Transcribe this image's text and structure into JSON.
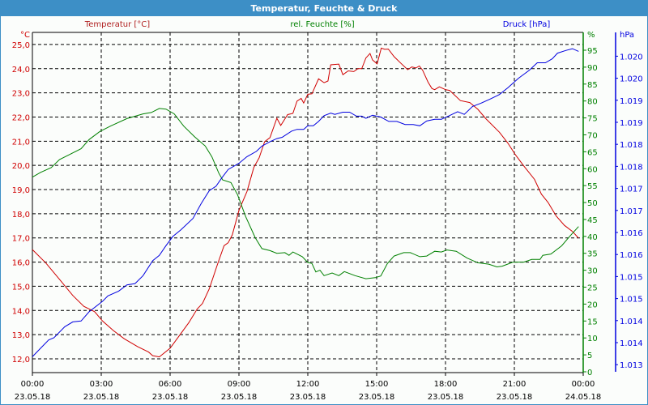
{
  "window": {
    "title": "Temperatur, Feuchte & Druck"
  },
  "colors": {
    "temperature": "#d00000",
    "humidity": "#008000",
    "pressure": "#0000e0",
    "titlebar": "#3d8fc6"
  },
  "chart_data": {
    "type": "line",
    "title": "Temperatur, Feuchte & Druck",
    "grid": true,
    "x_unit": "hours since 23.05.18 00:00",
    "xlim": [
      0,
      24
    ],
    "x_ticks": [
      {
        "time": "00:00",
        "date": "23.05.18"
      },
      {
        "time": "03:00",
        "date": "23.05.18"
      },
      {
        "time": "06:00",
        "date": "23.05.18"
      },
      {
        "time": "09:00",
        "date": "23.05.18"
      },
      {
        "time": "12:00",
        "date": "23.05.18"
      },
      {
        "time": "15:00",
        "date": "23.05.18"
      },
      {
        "time": "18:00",
        "date": "23.05.18"
      },
      {
        "time": "21:00",
        "date": "23.05.18"
      },
      {
        "time": "00:00",
        "date": "24.05.18"
      }
    ],
    "axes": {
      "temperature": {
        "label": "Temperatur [°C]",
        "unit": "°C",
        "ylim": [
          11.43,
          25.5
        ],
        "ticks": [
          "25,0",
          "24,0",
          "23,0",
          "22,0",
          "21,0",
          "20,0",
          "19,0",
          "18,0",
          "17,0",
          "16,0",
          "15,0",
          "14,0",
          "13,0",
          "12,0"
        ]
      },
      "humidity": {
        "label": "rel. Feuchte [%]",
        "unit": "%",
        "ylim": [
          0,
          96.4
        ],
        "ticks": [
          "95",
          "90",
          "85",
          "80",
          "75",
          "70",
          "65",
          "60",
          "55",
          "50",
          "45",
          "40",
          "35",
          "30",
          "25",
          "20",
          "15",
          "10",
          "5",
          "0"
        ]
      },
      "pressure": {
        "label": "Druck [hPa]",
        "unit": "hPa",
        "ylim": [
          1012.82,
          1020.54
        ],
        "ticks": [
          "1.020",
          "1.020",
          "1.019",
          "1.019",
          "1.018",
          "1.018",
          "1.017",
          "1.017",
          "1.016",
          "1.016",
          "1.015",
          "1.015",
          "1.014",
          "1.014",
          "1.013"
        ]
      }
    },
    "series": [
      {
        "name": "Temperatur",
        "axis": "temperature",
        "points": [
          [
            0,
            16.52
          ],
          [
            0.59,
            15.96
          ],
          [
            1.18,
            15.29
          ],
          [
            1.76,
            14.62
          ],
          [
            2.24,
            14.17
          ],
          [
            2.71,
            13.95
          ],
          [
            3.06,
            13.56
          ],
          [
            3.53,
            13.17
          ],
          [
            4.0,
            12.83
          ],
          [
            4.59,
            12.5
          ],
          [
            5.06,
            12.28
          ],
          [
            5.24,
            12.13
          ],
          [
            5.53,
            12.08
          ],
          [
            6.0,
            12.44
          ],
          [
            6.35,
            12.89
          ],
          [
            6.82,
            13.5
          ],
          [
            7.18,
            14.06
          ],
          [
            7.41,
            14.29
          ],
          [
            7.71,
            14.9
          ],
          [
            8.06,
            15.9
          ],
          [
            8.35,
            16.68
          ],
          [
            8.53,
            16.8
          ],
          [
            8.71,
            17.13
          ],
          [
            9.0,
            18.14
          ],
          [
            9.35,
            18.92
          ],
          [
            9.65,
            19.92
          ],
          [
            9.88,
            20.31
          ],
          [
            10.12,
            20.98
          ],
          [
            10.35,
            21.15
          ],
          [
            10.65,
            21.95
          ],
          [
            10.82,
            21.65
          ],
          [
            11.12,
            22.1
          ],
          [
            11.35,
            22.15
          ],
          [
            11.53,
            22.66
          ],
          [
            11.71,
            22.77
          ],
          [
            11.82,
            22.58
          ],
          [
            12.0,
            22.94
          ],
          [
            12.18,
            22.96
          ],
          [
            12.47,
            23.58
          ],
          [
            12.71,
            23.42
          ],
          [
            12.88,
            23.49
          ],
          [
            13.0,
            24.16
          ],
          [
            13.35,
            24.19
          ],
          [
            13.53,
            23.75
          ],
          [
            13.76,
            23.91
          ],
          [
            14.0,
            23.88
          ],
          [
            14.18,
            24.0
          ],
          [
            14.35,
            24.0
          ],
          [
            14.53,
            24.44
          ],
          [
            14.71,
            24.63
          ],
          [
            14.82,
            24.36
          ],
          [
            15.02,
            24.2
          ],
          [
            15.2,
            24.85
          ],
          [
            15.35,
            24.8
          ],
          [
            15.51,
            24.81
          ],
          [
            15.76,
            24.5
          ],
          [
            16.06,
            24.22
          ],
          [
            16.35,
            23.96
          ],
          [
            16.53,
            24.07
          ],
          [
            16.71,
            24.03
          ],
          [
            16.86,
            24.11
          ],
          [
            17.0,
            23.94
          ],
          [
            17.24,
            23.44
          ],
          [
            17.41,
            23.18
          ],
          [
            17.53,
            23.13
          ],
          [
            17.73,
            23.25
          ],
          [
            18.0,
            23.13
          ],
          [
            18.18,
            23.1
          ],
          [
            18.65,
            22.68
          ],
          [
            19.06,
            22.6
          ],
          [
            19.41,
            22.32
          ],
          [
            19.76,
            21.93
          ],
          [
            20.35,
            21.37
          ],
          [
            20.71,
            20.93
          ],
          [
            21.06,
            20.42
          ],
          [
            21.41,
            19.98
          ],
          [
            21.88,
            19.42
          ],
          [
            22.18,
            18.81
          ],
          [
            22.47,
            18.47
          ],
          [
            22.82,
            17.91
          ],
          [
            23.18,
            17.52
          ],
          [
            23.53,
            17.27
          ],
          [
            23.8,
            16.99
          ]
        ]
      },
      {
        "name": "rel. Feuchte",
        "axis": "humidity",
        "points": [
          [
            0,
            57.5
          ],
          [
            0.35,
            58.9
          ],
          [
            0.82,
            60.3
          ],
          [
            1.18,
            62.7
          ],
          [
            1.65,
            64.3
          ],
          [
            2.12,
            65.9
          ],
          [
            2.47,
            68.6
          ],
          [
            2.94,
            71.0
          ],
          [
            3.41,
            72.6
          ],
          [
            4.12,
            74.8
          ],
          [
            4.82,
            76.2
          ],
          [
            5.18,
            76.6
          ],
          [
            5.53,
            77.8
          ],
          [
            5.82,
            77.6
          ],
          [
            6.18,
            76.2
          ],
          [
            6.59,
            72.6
          ],
          [
            7.06,
            69.5
          ],
          [
            7.53,
            66.7
          ],
          [
            7.82,
            63.5
          ],
          [
            8.12,
            58.7
          ],
          [
            8.29,
            56.7
          ],
          [
            8.65,
            55.9
          ],
          [
            8.94,
            52.3
          ],
          [
            9.29,
            45.9
          ],
          [
            9.71,
            39.6
          ],
          [
            10.0,
            36.4
          ],
          [
            10.35,
            35.8
          ],
          [
            10.65,
            35.0
          ],
          [
            11.0,
            35.2
          ],
          [
            11.18,
            34.4
          ],
          [
            11.35,
            35.4
          ],
          [
            11.76,
            34.0
          ],
          [
            12.0,
            32.3
          ],
          [
            12.18,
            32.0
          ],
          [
            12.35,
            29.5
          ],
          [
            12.53,
            30.0
          ],
          [
            12.71,
            28.4
          ],
          [
            13.06,
            29.2
          ],
          [
            13.35,
            28.4
          ],
          [
            13.59,
            29.6
          ],
          [
            14.06,
            28.4
          ],
          [
            14.53,
            27.5
          ],
          [
            14.94,
            27.8
          ],
          [
            15.18,
            28.3
          ],
          [
            15.47,
            32.0
          ],
          [
            15.76,
            34.2
          ],
          [
            16.18,
            35.2
          ],
          [
            16.47,
            35.2
          ],
          [
            16.88,
            34.0
          ],
          [
            17.18,
            34.2
          ],
          [
            17.53,
            35.6
          ],
          [
            17.82,
            35.4
          ],
          [
            18.06,
            36.0
          ],
          [
            18.47,
            35.6
          ],
          [
            18.94,
            33.6
          ],
          [
            19.41,
            32.2
          ],
          [
            19.88,
            31.8
          ],
          [
            20.24,
            31.0
          ],
          [
            20.47,
            31.2
          ],
          [
            20.94,
            32.4
          ],
          [
            21.41,
            32.4
          ],
          [
            21.76,
            33.2
          ],
          [
            22.12,
            33.2
          ],
          [
            22.24,
            34.4
          ],
          [
            22.59,
            34.8
          ],
          [
            23.06,
            37.2
          ],
          [
            23.41,
            40.0
          ],
          [
            23.8,
            42.9
          ]
        ]
      },
      {
        "name": "Druck",
        "axis": "pressure",
        "points": [
          [
            0,
            1013.18
          ],
          [
            0.35,
            1013.37
          ],
          [
            0.71,
            1013.56
          ],
          [
            0.94,
            1013.61
          ],
          [
            1.41,
            1013.86
          ],
          [
            1.76,
            1013.97
          ],
          [
            2.12,
            1013.99
          ],
          [
            2.47,
            1014.2
          ],
          [
            3.06,
            1014.44
          ],
          [
            3.29,
            1014.56
          ],
          [
            3.76,
            1014.67
          ],
          [
            4.12,
            1014.81
          ],
          [
            4.47,
            1014.84
          ],
          [
            4.82,
            1015.02
          ],
          [
            5.24,
            1015.36
          ],
          [
            5.53,
            1015.48
          ],
          [
            5.82,
            1015.7
          ],
          [
            6.12,
            1015.91
          ],
          [
            6.47,
            1016.06
          ],
          [
            7.0,
            1016.32
          ],
          [
            7.35,
            1016.65
          ],
          [
            7.71,
            1016.95
          ],
          [
            8.0,
            1017.05
          ],
          [
            8.24,
            1017.23
          ],
          [
            8.53,
            1017.43
          ],
          [
            9.0,
            1017.57
          ],
          [
            9.35,
            1017.72
          ],
          [
            9.76,
            1017.84
          ],
          [
            10.0,
            1017.96
          ],
          [
            10.35,
            1018.06
          ],
          [
            10.65,
            1018.13
          ],
          [
            10.88,
            1018.16
          ],
          [
            11.29,
            1018.3
          ],
          [
            11.53,
            1018.34
          ],
          [
            11.82,
            1018.34
          ],
          [
            12.0,
            1018.42
          ],
          [
            12.24,
            1018.42
          ],
          [
            12.47,
            1018.52
          ],
          [
            12.71,
            1018.65
          ],
          [
            13.0,
            1018.71
          ],
          [
            13.18,
            1018.68
          ],
          [
            13.53,
            1018.73
          ],
          [
            13.82,
            1018.73
          ],
          [
            14.12,
            1018.64
          ],
          [
            14.35,
            1018.64
          ],
          [
            14.53,
            1018.59
          ],
          [
            14.82,
            1018.66
          ],
          [
            15.18,
            1018.62
          ],
          [
            15.53,
            1018.52
          ],
          [
            15.88,
            1018.52
          ],
          [
            16.24,
            1018.45
          ],
          [
            16.59,
            1018.45
          ],
          [
            16.88,
            1018.42
          ],
          [
            17.18,
            1018.53
          ],
          [
            17.53,
            1018.57
          ],
          [
            17.82,
            1018.57
          ],
          [
            18.12,
            1018.64
          ],
          [
            18.53,
            1018.74
          ],
          [
            18.82,
            1018.68
          ],
          [
            19.18,
            1018.86
          ],
          [
            19.53,
            1018.93
          ],
          [
            20.0,
            1019.04
          ],
          [
            20.35,
            1019.13
          ],
          [
            20.71,
            1019.28
          ],
          [
            21.18,
            1019.5
          ],
          [
            21.65,
            1019.68
          ],
          [
            22.0,
            1019.85
          ],
          [
            22.35,
            1019.85
          ],
          [
            22.65,
            1019.94
          ],
          [
            22.88,
            1020.07
          ],
          [
            23.24,
            1020.13
          ],
          [
            23.53,
            1020.17
          ],
          [
            23.8,
            1020.11
          ]
        ]
      }
    ]
  }
}
